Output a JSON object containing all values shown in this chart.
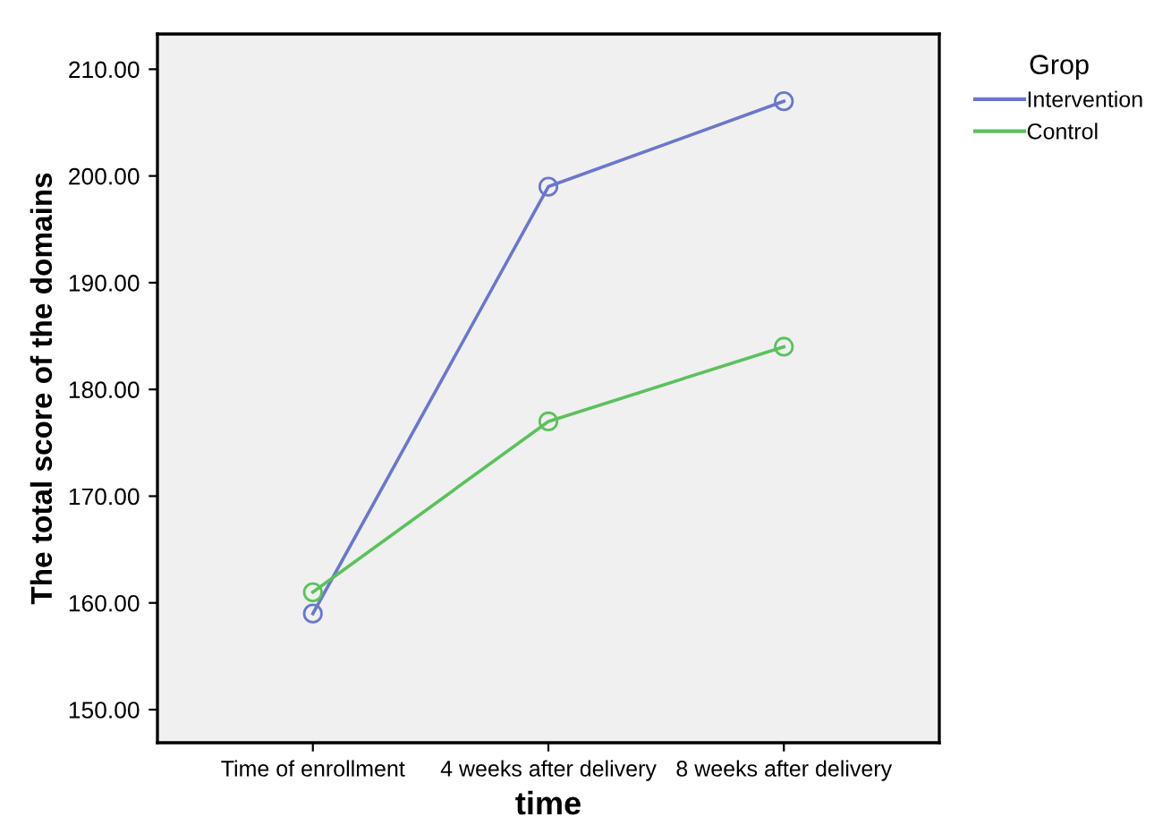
{
  "chart_data": {
    "type": "line",
    "xlabel": "time",
    "ylabel": "The total score of the domains",
    "legend_title": "Grop",
    "categories": [
      "Time of enrollment",
      "4 weeks after delivery",
      "8 weeks after delivery"
    ],
    "series": [
      {
        "name": "Intervention",
        "color": "#6b77c9",
        "values": [
          159,
          199,
          207
        ]
      },
      {
        "name": "Control",
        "color": "#5cc15c",
        "values": [
          161,
          177,
          184
        ]
      }
    ],
    "ylim": [
      146.9,
      213.3
    ],
    "yticks": [
      {
        "value": 150,
        "label": "150.00"
      },
      {
        "value": 160,
        "label": "160.00"
      },
      {
        "value": 170,
        "label": "170.00"
      },
      {
        "value": 180,
        "label": "180.00"
      },
      {
        "value": 190,
        "label": "190.00"
      },
      {
        "value": 200,
        "label": "200.00"
      },
      {
        "value": 210,
        "label": "210.00"
      }
    ],
    "grid": false,
    "legend": "top right",
    "marker": "circle",
    "line_style": "solid"
  }
}
